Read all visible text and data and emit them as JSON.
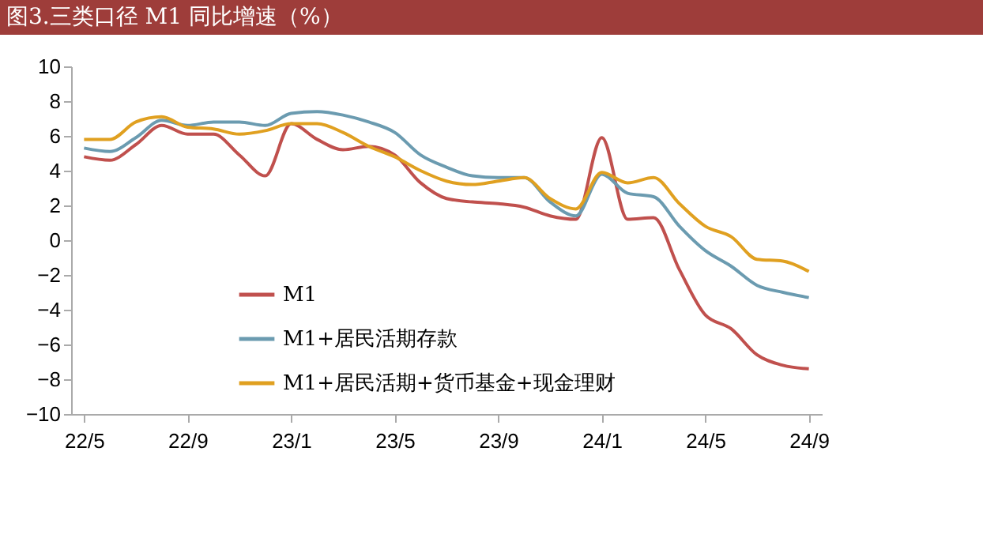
{
  "chart_data": {
    "type": "line",
    "title": "图3.三类口径 M1 同比增速（%）",
    "categories": [
      "22/5",
      null,
      null,
      null,
      "22/9",
      null,
      null,
      null,
      "23/1",
      null,
      null,
      null,
      "23/5",
      null,
      null,
      null,
      "23/9",
      null,
      null,
      null,
      "24/1",
      null,
      null,
      null,
      "24/5",
      null,
      null,
      null,
      "24/9"
    ],
    "series": [
      {
        "name": "M1",
        "color": "#c0504d",
        "values": [
          4.8,
          4.6,
          5.5,
          6.6,
          6.1,
          6.1,
          4.9,
          3.7,
          6.7,
          5.8,
          5.2,
          5.4,
          4.9,
          3.3,
          2.4,
          2.2,
          2.1,
          1.9,
          1.4,
          1.2,
          5.9,
          1.2,
          1.3,
          -1.7,
          -4.3,
          -5.1,
          -6.6,
          -7.2,
          -7.4
        ]
      },
      {
        "name": "M1+居民活期存款",
        "color": "#6b9bb0",
        "values": [
          5.3,
          5.1,
          5.9,
          6.9,
          6.6,
          6.8,
          6.8,
          6.6,
          7.3,
          7.4,
          7.2,
          6.8,
          6.2,
          4.9,
          4.2,
          3.7,
          3.6,
          3.6,
          2.2,
          1.4,
          3.8,
          2.7,
          2.5,
          0.8,
          -0.6,
          -1.5,
          -2.6,
          -3.0,
          -3.3
        ]
      },
      {
        "name": "M1+居民活期+货币基金+现金理财",
        "color": "#e0a020",
        "values": [
          5.8,
          5.8,
          6.8,
          7.1,
          6.5,
          6.4,
          6.1,
          6.3,
          6.7,
          6.7,
          6.2,
          5.4,
          4.8,
          4.0,
          3.4,
          3.2,
          3.4,
          3.6,
          2.4,
          1.8,
          3.9,
          3.3,
          3.6,
          2.1,
          0.8,
          0.2,
          -1.1,
          -1.2,
          -1.8
        ]
      }
    ],
    "ylim": [
      -10,
      10
    ],
    "yticks": [
      -10,
      -8,
      -6,
      -4,
      -2,
      0,
      2,
      4,
      6,
      8,
      10
    ],
    "grid": false,
    "legend": "bottom",
    "line_style": "solid",
    "marker": "none"
  }
}
